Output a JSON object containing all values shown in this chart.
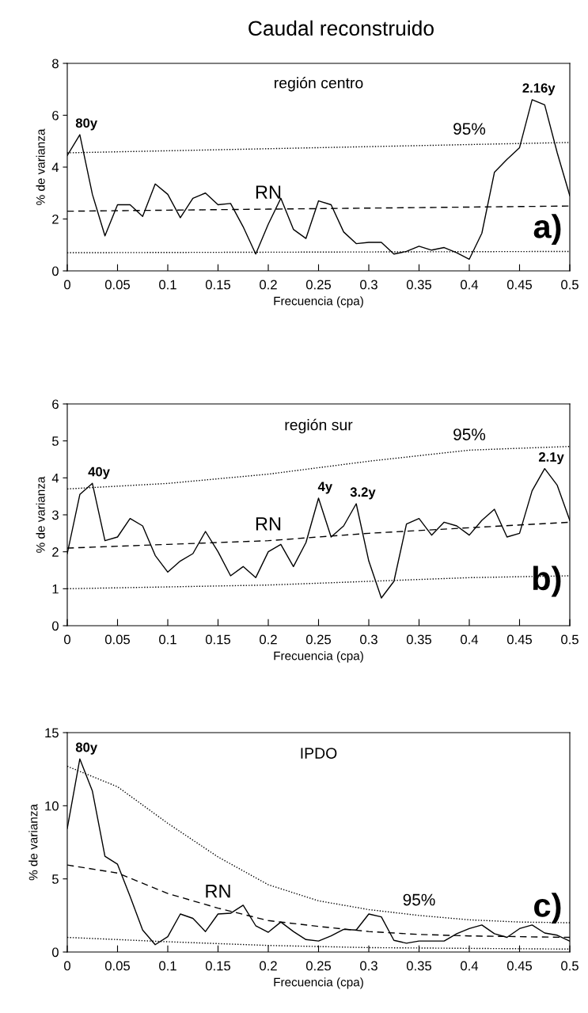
{
  "chart_data": [
    {
      "type": "line",
      "title": "Caudal reconstruido",
      "subtitle": "región centro",
      "xlabel": "Frecuencia (cpa)",
      "ylabel": "% de varianza",
      "xlim": [
        0,
        0.5
      ],
      "xticks": [
        0,
        0.05,
        0.1,
        0.15,
        0.2,
        0.25,
        0.3,
        0.35,
        0.4,
        0.45,
        0.5
      ],
      "ylim": [
        0,
        8
      ],
      "yticks": [
        0,
        2,
        4,
        6,
        8
      ],
      "grid": false,
      "marker": "none",
      "annotations": [
        {
          "text": "80y",
          "x": 0.0125,
          "y": 5.25
        },
        {
          "text": "2.16y",
          "x": 0.4625,
          "y": 6.6
        },
        "a)"
      ],
      "series": [
        {
          "color": "#000000",
          "line_style": "solid",
          "x": [
            0,
            0.0125,
            0.025,
            0.0375,
            0.05,
            0.0625,
            0.075,
            0.0875,
            0.1,
            0.1125,
            0.125,
            0.1375,
            0.15,
            0.1625,
            0.175,
            0.1875,
            0.2,
            0.2125,
            0.225,
            0.2375,
            0.25,
            0.2625,
            0.275,
            0.2875,
            0.3,
            0.3125,
            0.325,
            0.3375,
            0.35,
            0.3625,
            0.375,
            0.3875,
            0.4,
            0.4125,
            0.425,
            0.4375,
            0.45,
            0.4625,
            0.475,
            0.4875,
            0.5
          ],
          "values": [
            4.45,
            5.25,
            2.95,
            1.35,
            2.55,
            2.55,
            2.1,
            3.35,
            2.95,
            2.05,
            2.8,
            3.0,
            2.55,
            2.6,
            1.7,
            0.65,
            1.8,
            2.8,
            1.6,
            1.25,
            2.7,
            2.55,
            1.5,
            1.05,
            1.1,
            1.1,
            0.65,
            0.75,
            0.95,
            0.8,
            0.9,
            0.7,
            0.45,
            1.45,
            3.8,
            4.3,
            4.75,
            6.6,
            6.4,
            4.55,
            2.9
          ]
        },
        {
          "name": "95%",
          "color": "#000000",
          "line_style": "dotted",
          "x": [
            0,
            0.1,
            0.2,
            0.3,
            0.4,
            0.5
          ],
          "values": [
            4.55,
            4.63,
            4.71,
            4.79,
            4.87,
            4.95
          ]
        },
        {
          "name": "RN",
          "color": "#000000",
          "line_style": "dashed",
          "x": [
            0,
            0.1,
            0.2,
            0.3,
            0.4,
            0.5
          ],
          "values": [
            2.3,
            2.34,
            2.38,
            2.42,
            2.46,
            2.5
          ]
        },
        {
          "color": "#000000",
          "line_style": "dotted",
          "x": [
            0,
            0.5
          ],
          "values": [
            0.7,
            0.75
          ]
        }
      ]
    },
    {
      "type": "line",
      "subtitle": "región sur",
      "xlabel": "Frecuencia (cpa)",
      "ylabel": "% de varianza",
      "xlim": [
        0,
        0.5
      ],
      "xticks": [
        0,
        0.05,
        0.1,
        0.15,
        0.2,
        0.25,
        0.3,
        0.35,
        0.4,
        0.45,
        0.5
      ],
      "ylim": [
        0,
        6
      ],
      "yticks": [
        0,
        1,
        2,
        3,
        4,
        5,
        6
      ],
      "grid": false,
      "marker": "none",
      "annotations": [
        {
          "text": "40y",
          "x": 0.025,
          "y": 3.85
        },
        {
          "text": "4y",
          "x": 0.25,
          "y": 3.45
        },
        {
          "text": "3.2y",
          "x": 0.2875,
          "y": 3.3
        },
        {
          "text": "2.1y",
          "x": 0.475,
          "y": 4.25
        },
        "b)"
      ],
      "series": [
        {
          "color": "#000000",
          "line_style": "solid",
          "x": [
            0,
            0.0125,
            0.025,
            0.0375,
            0.05,
            0.0625,
            0.075,
            0.0875,
            0.1,
            0.1125,
            0.125,
            0.1375,
            0.15,
            0.1625,
            0.175,
            0.1875,
            0.2,
            0.2125,
            0.225,
            0.2375,
            0.25,
            0.2625,
            0.275,
            0.2875,
            0.3,
            0.3125,
            0.325,
            0.3375,
            0.35,
            0.3625,
            0.375,
            0.3875,
            0.4,
            0.4125,
            0.425,
            0.4375,
            0.45,
            0.4625,
            0.475,
            0.4875,
            0.5
          ],
          "values": [
            1.95,
            3.55,
            3.85,
            2.3,
            2.4,
            2.9,
            2.7,
            1.9,
            1.45,
            1.75,
            1.95,
            2.55,
            2.0,
            1.35,
            1.6,
            1.3,
            2.0,
            2.2,
            1.6,
            2.25,
            3.45,
            2.4,
            2.7,
            3.3,
            1.75,
            0.75,
            1.2,
            2.75,
            2.9,
            2.45,
            2.8,
            2.7,
            2.45,
            2.85,
            3.15,
            2.4,
            2.5,
            3.65,
            4.25,
            3.8,
            2.85
          ]
        },
        {
          "name": "95%",
          "color": "#000000",
          "line_style": "dotted",
          "x": [
            0,
            0.1,
            0.2,
            0.3,
            0.4,
            0.5
          ],
          "values": [
            3.7,
            3.85,
            4.1,
            4.45,
            4.75,
            4.85
          ]
        },
        {
          "name": "RN",
          "color": "#000000",
          "line_style": "dashed",
          "x": [
            0,
            0.1,
            0.2,
            0.3,
            0.4,
            0.5
          ],
          "values": [
            2.1,
            2.2,
            2.3,
            2.5,
            2.65,
            2.8
          ]
        },
        {
          "color": "#000000",
          "line_style": "dotted",
          "x": [
            0,
            0.1,
            0.2,
            0.3,
            0.4,
            0.5
          ],
          "values": [
            1.0,
            1.05,
            1.1,
            1.2,
            1.3,
            1.35
          ]
        }
      ]
    },
    {
      "type": "line",
      "subtitle": "IPDO",
      "xlabel": "Frecuencia (cpa)",
      "ylabel": "% de varianza",
      "xlim": [
        0,
        0.5
      ],
      "xticks": [
        0,
        0.05,
        0.1,
        0.15,
        0.2,
        0.25,
        0.3,
        0.35,
        0.4,
        0.45,
        0.5
      ],
      "ylim": [
        0,
        15
      ],
      "yticks": [
        0,
        5,
        10,
        15
      ],
      "grid": false,
      "marker": "none",
      "annotations": [
        {
          "text": "80y",
          "x": 0.0125,
          "y": 13.2
        },
        "c)"
      ],
      "series": [
        {
          "color": "#000000",
          "line_style": "solid",
          "x": [
            0,
            0.0125,
            0.025,
            0.0375,
            0.05,
            0.0625,
            0.075,
            0.0875,
            0.1,
            0.1125,
            0.125,
            0.1375,
            0.15,
            0.1625,
            0.175,
            0.1875,
            0.2,
            0.2125,
            0.225,
            0.2375,
            0.25,
            0.2625,
            0.275,
            0.2875,
            0.3,
            0.3125,
            0.325,
            0.3375,
            0.35,
            0.3625,
            0.375,
            0.3875,
            0.4,
            0.4125,
            0.425,
            0.4375,
            0.45,
            0.4625,
            0.475,
            0.4875,
            0.5
          ],
          "values": [
            8.45,
            13.2,
            11.0,
            6.55,
            6.0,
            3.8,
            1.5,
            0.5,
            1.05,
            2.6,
            2.3,
            1.4,
            2.6,
            2.65,
            3.2,
            1.8,
            1.35,
            2.05,
            1.4,
            0.85,
            0.75,
            1.1,
            1.55,
            1.5,
            2.6,
            2.4,
            0.8,
            0.6,
            0.75,
            0.75,
            0.75,
            1.25,
            1.6,
            1.85,
            1.25,
            1.0,
            1.6,
            1.85,
            1.3,
            1.15,
            0.75
          ]
        },
        {
          "name": "95%",
          "color": "#000000",
          "line_style": "dotted",
          "x": [
            0,
            0.05,
            0.1,
            0.15,
            0.2,
            0.25,
            0.3,
            0.35,
            0.4,
            0.45,
            0.5
          ],
          "values": [
            12.7,
            11.3,
            8.8,
            6.5,
            4.6,
            3.5,
            2.9,
            2.5,
            2.2,
            2.05,
            2.0
          ]
        },
        {
          "name": "RN",
          "color": "#000000",
          "line_style": "dashed",
          "x": [
            0,
            0.05,
            0.1,
            0.15,
            0.2,
            0.25,
            0.3,
            0.35,
            0.4,
            0.45,
            0.5
          ],
          "values": [
            5.95,
            5.4,
            4.0,
            3.0,
            2.15,
            1.75,
            1.4,
            1.2,
            1.1,
            1.05,
            1.0
          ]
        },
        {
          "color": "#000000",
          "line_style": "dotted",
          "x": [
            0,
            0.1,
            0.2,
            0.3,
            0.4,
            0.5
          ],
          "values": [
            1.0,
            0.7,
            0.45,
            0.3,
            0.25,
            0.2
          ]
        }
      ]
    }
  ]
}
